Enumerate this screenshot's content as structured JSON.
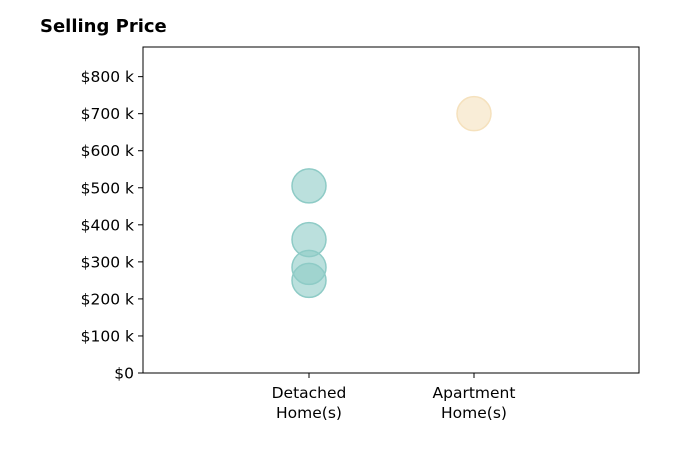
{
  "chart_data": {
    "type": "scatter",
    "title": "Selling Price",
    "xlabel": "",
    "ylabel": "",
    "categories": [
      [
        "Detached",
        "Home(s)"
      ],
      [
        "Apartment",
        "Home(s)"
      ]
    ],
    "ylim": [
      0,
      880000
    ],
    "yticks": [
      {
        "value": 0,
        "label": "$0"
      },
      {
        "value": 100000,
        "label": "$100 k"
      },
      {
        "value": 200000,
        "label": "$200 k"
      },
      {
        "value": 300000,
        "label": "$300 k"
      },
      {
        "value": 400000,
        "label": "$400 k"
      },
      {
        "value": 500000,
        "label": "$500 k"
      },
      {
        "value": 600000,
        "label": "$600 k"
      },
      {
        "value": 700000,
        "label": "$700 k"
      },
      {
        "value": 800000,
        "label": "$800 k"
      }
    ],
    "grid": false,
    "series": [
      {
        "category_index": 0,
        "color": "#8ecbc6",
        "values": [
          505000,
          360000,
          285000,
          250000
        ]
      },
      {
        "category_index": 1,
        "color": "#f5e1bd",
        "values": [
          700000
        ]
      }
    ]
  }
}
